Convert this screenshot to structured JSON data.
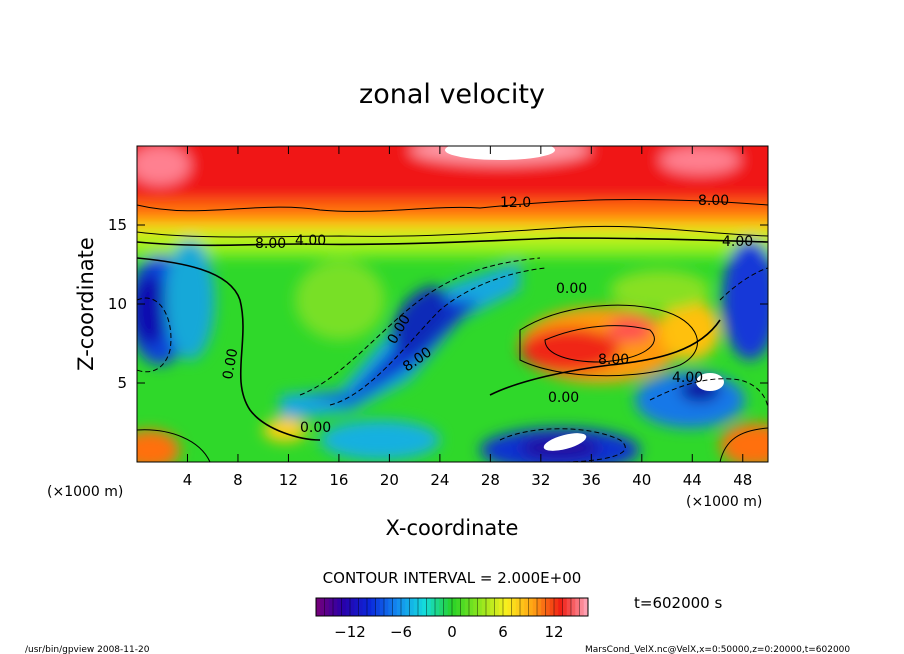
{
  "chart_data": {
    "type": "heatmap",
    "title": "zonal velocity",
    "xlabel": "X-coordinate",
    "ylabel": "Z-coordinate",
    "x_unit": "(×1000 m)",
    "y_unit": "(×1000 m)",
    "xlim": [
      0,
      50
    ],
    "ylim": [
      0,
      20
    ],
    "x_ticks": [
      4,
      8,
      12,
      16,
      20,
      24,
      28,
      32,
      36,
      40,
      44,
      48
    ],
    "y_ticks": [
      5,
      10,
      15
    ],
    "contour_interval_label": "CONTOUR INTERVAL = 2.000E+00",
    "contour_labels": [
      "12.0",
      "8.00",
      "8.00",
      "4.00",
      "4.00",
      "0.00",
      "0.00",
      "0.00",
      "0.00",
      "0.00",
      "8.00",
      "8.00",
      "4.00"
    ],
    "colorbar": {
      "min": -16,
      "max": 16,
      "tick_values": [
        -12,
        -6,
        0,
        6,
        12
      ],
      "tick_labels": [
        "−12",
        "−6",
        "0",
        "6",
        "12"
      ]
    },
    "time_label": "t=602000 s",
    "footer_left": "/usr/bin/gpview  2008-11-20",
    "footer_right": "MarsCond_VelX.nc@VelX,x=0:50000,z=0:20000,t=602000",
    "grid": false
  }
}
